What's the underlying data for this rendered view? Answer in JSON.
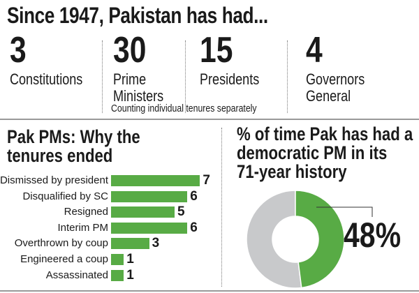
{
  "header": {
    "title": "Since 1947, Pakistan has had..."
  },
  "stats": [
    {
      "value": "3",
      "label_lines": [
        "Constitutions"
      ]
    },
    {
      "value": "30",
      "label_lines": [
        "Prime",
        "Ministers"
      ]
    },
    {
      "value": "15",
      "label_lines": [
        "Presidents"
      ]
    },
    {
      "value": "4",
      "label_lines": [
        "Governors",
        "General"
      ]
    }
  ],
  "footnote": "Counting individual tenures separately",
  "colors": {
    "green": "#58ab45",
    "gray": "#c8c9cb",
    "text": "#1a1a1a"
  },
  "chart_data": [
    {
      "type": "bar",
      "orientation": "horizontal",
      "title_lines": [
        "Pak PMs: Why the",
        "tenures ended"
      ],
      "categories": [
        "Dismissed by president",
        "Disqualified by SC",
        "Resigned",
        "Interim PM",
        "Overthrown by coup",
        "Engineered a coup",
        "Assassinated"
      ],
      "values": [
        7,
        6,
        5,
        6,
        3,
        1,
        1
      ],
      "data_labels": [
        "7",
        "6",
        "5",
        "6",
        "3",
        "1",
        "1"
      ]
    },
    {
      "type": "pie",
      "style": "donut",
      "title_lines": [
        "% of time Pak has had a",
        "democratic PM in its",
        "71-year history"
      ],
      "values": [
        48,
        52
      ],
      "highlight_label": "48%"
    }
  ]
}
